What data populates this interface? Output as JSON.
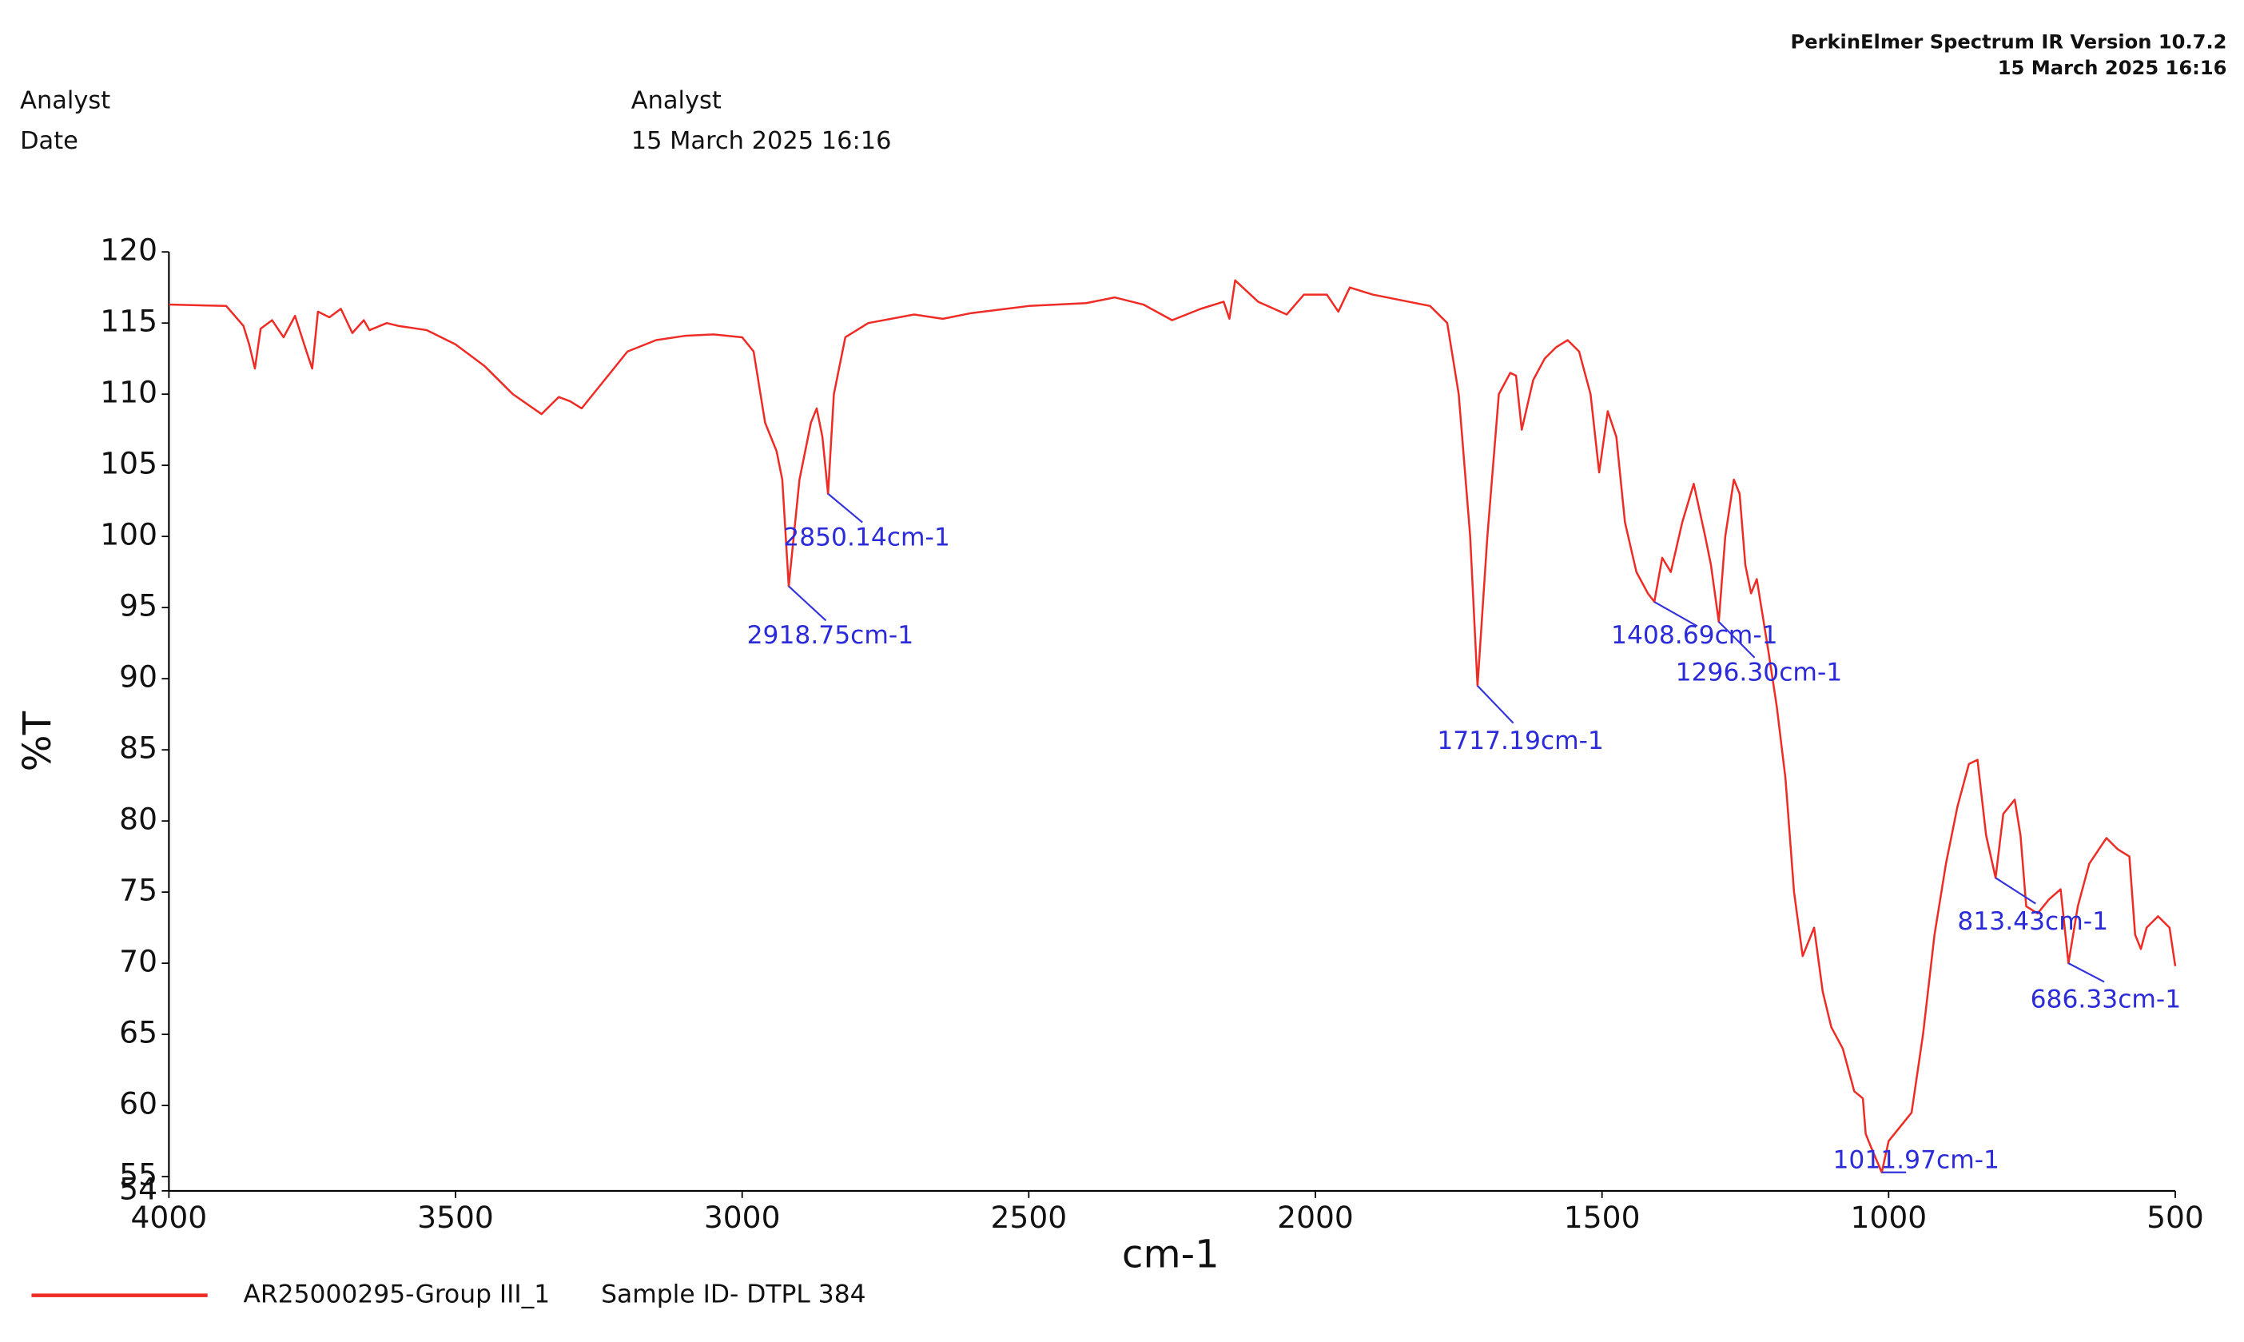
{
  "chart_data": {
    "type": "line",
    "software": "PerkinElmer Spectrum IR Version 10.7.2",
    "report_date": "15 March 2025 16:16",
    "info_labels": [
      "Analyst",
      "Date"
    ],
    "info_values": [
      "Analyst",
      "15 March 2025 16:16"
    ],
    "x_label": "cm-1",
    "y_label": "%T",
    "xlim": [
      4000,
      500
    ],
    "ylim": [
      54,
      120
    ],
    "xticks": [
      4000,
      3500,
      3000,
      2500,
      2000,
      1500,
      1000,
      500
    ],
    "yticks": [
      54,
      55,
      60,
      65,
      70,
      75,
      80,
      85,
      90,
      95,
      100,
      105,
      110,
      115,
      120
    ],
    "series": [
      {
        "name": "AR25000295-Group III_1",
        "sample_id": "Sample ID- DTPL 384",
        "color": "#ee2b24",
        "x": [
          4000,
          3900,
          3870,
          3860,
          3850,
          3840,
          3820,
          3800,
          3780,
          3760,
          3750,
          3740,
          3720,
          3700,
          3680,
          3660,
          3650,
          3620,
          3600,
          3550,
          3500,
          3450,
          3400,
          3350,
          3320,
          3300,
          3280,
          3250,
          3200,
          3150,
          3100,
          3050,
          3000,
          2980,
          2960,
          2940,
          2930,
          2918.75,
          2900,
          2880,
          2870,
          2860,
          2850.14,
          2840,
          2820,
          2780,
          2700,
          2650,
          2600,
          2500,
          2400,
          2350,
          2300,
          2250,
          2200,
          2160,
          2150,
          2140,
          2100,
          2050,
          2020,
          1980,
          1960,
          1940,
          1900,
          1850,
          1800,
          1770,
          1750,
          1730,
          1717.19,
          1700,
          1680,
          1660,
          1650,
          1640,
          1620,
          1600,
          1580,
          1560,
          1540,
          1520,
          1505,
          1490,
          1475,
          1460,
          1440,
          1420,
          1408.69,
          1395,
          1380,
          1360,
          1340,
          1320,
          1310,
          1296.3,
          1285,
          1270,
          1260,
          1250,
          1240,
          1230,
          1210,
          1195,
          1180,
          1165,
          1150,
          1130,
          1115,
          1100,
          1080,
          1060,
          1045,
          1040,
          1030,
          1011.97,
          1000,
          980,
          960,
          940,
          920,
          900,
          880,
          860,
          845,
          830,
          813.43,
          800,
          780,
          770,
          760,
          740,
          720,
          700,
          686.33,
          670,
          650,
          620,
          600,
          580,
          570,
          560,
          550,
          530,
          510,
          500
        ],
        "values": [
          116.3,
          116.2,
          114.8,
          113.5,
          111.8,
          114.6,
          115.2,
          114.0,
          115.5,
          113.0,
          111.8,
          115.8,
          115.4,
          116.0,
          114.3,
          115.2,
          114.5,
          115.0,
          114.8,
          114.5,
          113.5,
          112.0,
          110.0,
          108.6,
          109.8,
          109.5,
          109.0,
          110.5,
          113.0,
          113.8,
          114.1,
          114.2,
          114.0,
          113.0,
          108.0,
          106.0,
          104.0,
          96.5,
          104.0,
          108.0,
          109.0,
          107.0,
          103.0,
          110.0,
          114.0,
          115.0,
          115.6,
          115.3,
          115.7,
          116.2,
          116.4,
          116.8,
          116.3,
          115.2,
          116.0,
          116.5,
          115.3,
          118.0,
          116.5,
          115.6,
          117.0,
          117.0,
          115.8,
          117.5,
          117.0,
          116.6,
          116.2,
          115.0,
          110.0,
          100.0,
          89.5,
          100.0,
          110.0,
          111.5,
          111.3,
          107.5,
          111.0,
          112.5,
          113.3,
          113.8,
          113.0,
          110.0,
          104.5,
          108.8,
          107.0,
          101.0,
          97.5,
          96.0,
          95.4,
          98.5,
          97.5,
          101.0,
          103.7,
          100.0,
          98.0,
          94.0,
          100.0,
          104.0,
          103.0,
          98.0,
          96.0,
          97.0,
          92.0,
          88.0,
          83.0,
          75.0,
          70.5,
          72.5,
          68.0,
          65.5,
          64.0,
          61.0,
          60.5,
          58.0,
          57.0,
          55.3,
          57.5,
          58.5,
          59.5,
          65.0,
          72.0,
          77.0,
          81.0,
          84.0,
          84.3,
          79.0,
          76.0,
          80.5,
          81.5,
          79.0,
          74.0,
          73.5,
          74.5,
          75.2,
          70.0,
          74.0,
          77.0,
          78.8,
          78.0,
          77.5,
          72.0,
          71.0,
          72.5,
          73.3,
          72.5,
          69.8
        ]
      }
    ],
    "peaks": [
      {
        "x": 2850.14,
        "y": 103.0,
        "label": "2850.14cm-1"
      },
      {
        "x": 2918.75,
        "y": 96.5,
        "label": "2918.75cm-1"
      },
      {
        "x": 1717.19,
        "y": 89.5,
        "label": "1717.19cm-1"
      },
      {
        "x": 1408.69,
        "y": 95.4,
        "label": "1408.69cm-1"
      },
      {
        "x": 1296.3,
        "y": 94.0,
        "label": "1296.30cm-1"
      },
      {
        "x": 1011.97,
        "y": 55.3,
        "label": "1011.97cm-1"
      },
      {
        "x": 813.43,
        "y": 76.0,
        "label": "813.43cm-1"
      },
      {
        "x": 686.33,
        "y": 70.0,
        "label": "686.33cm-1"
      }
    ]
  }
}
